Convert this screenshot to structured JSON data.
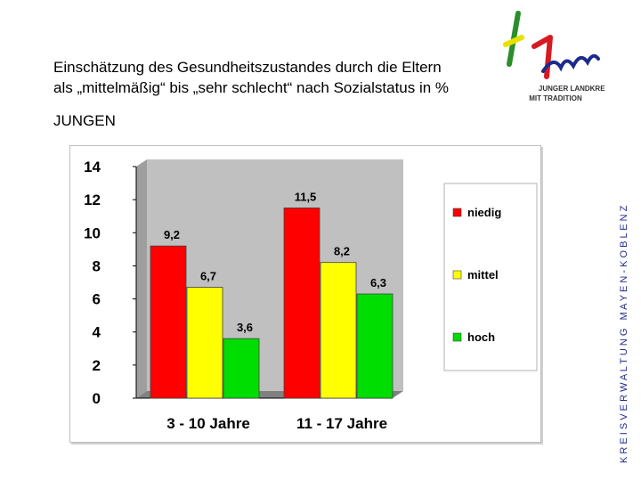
{
  "header": {
    "title_line1": "Einschätzung des Gesundheitszustandes durch die Eltern",
    "title_line2": "als „mittelmäßig“ bis „sehr schlecht“ nach Sozialstatus in %",
    "subtitle": "JUNGEN"
  },
  "logo": {
    "text_line1": "JUNGER LANDKREIS",
    "text_line2": "MIT TRADITION",
    "colors": [
      "#2a8f2a",
      "#e8e000",
      "#d71920",
      "#1e2b8c"
    ]
  },
  "side_banner": {
    "text": "K R E I S V E R W A L T U N G   M A Y E N - K O B L E N Z"
  },
  "chart_data": {
    "type": "bar",
    "categories": [
      "3 - 10 Jahre",
      "11 - 17 Jahre"
    ],
    "series": [
      {
        "name": "niedig",
        "values": [
          9.2,
          11.5
        ],
        "labels": [
          "9,2",
          "11,5"
        ],
        "color": "#ff0000"
      },
      {
        "name": "mittel",
        "values": [
          6.7,
          8.2
        ],
        "labels": [
          "6,7",
          "8,2"
        ],
        "color": "#ffff00"
      },
      {
        "name": "hoch",
        "values": [
          3.6,
          6.3
        ],
        "labels": [
          "3,6",
          "6,3"
        ],
        "color": "#00dd00"
      }
    ],
    "ylim": [
      0,
      14
    ],
    "yticks": [
      "0",
      "2",
      "4",
      "6",
      "8",
      "10",
      "12",
      "14"
    ],
    "grid": false,
    "legend_position": "right",
    "plot_background": "#c0c0c0"
  }
}
